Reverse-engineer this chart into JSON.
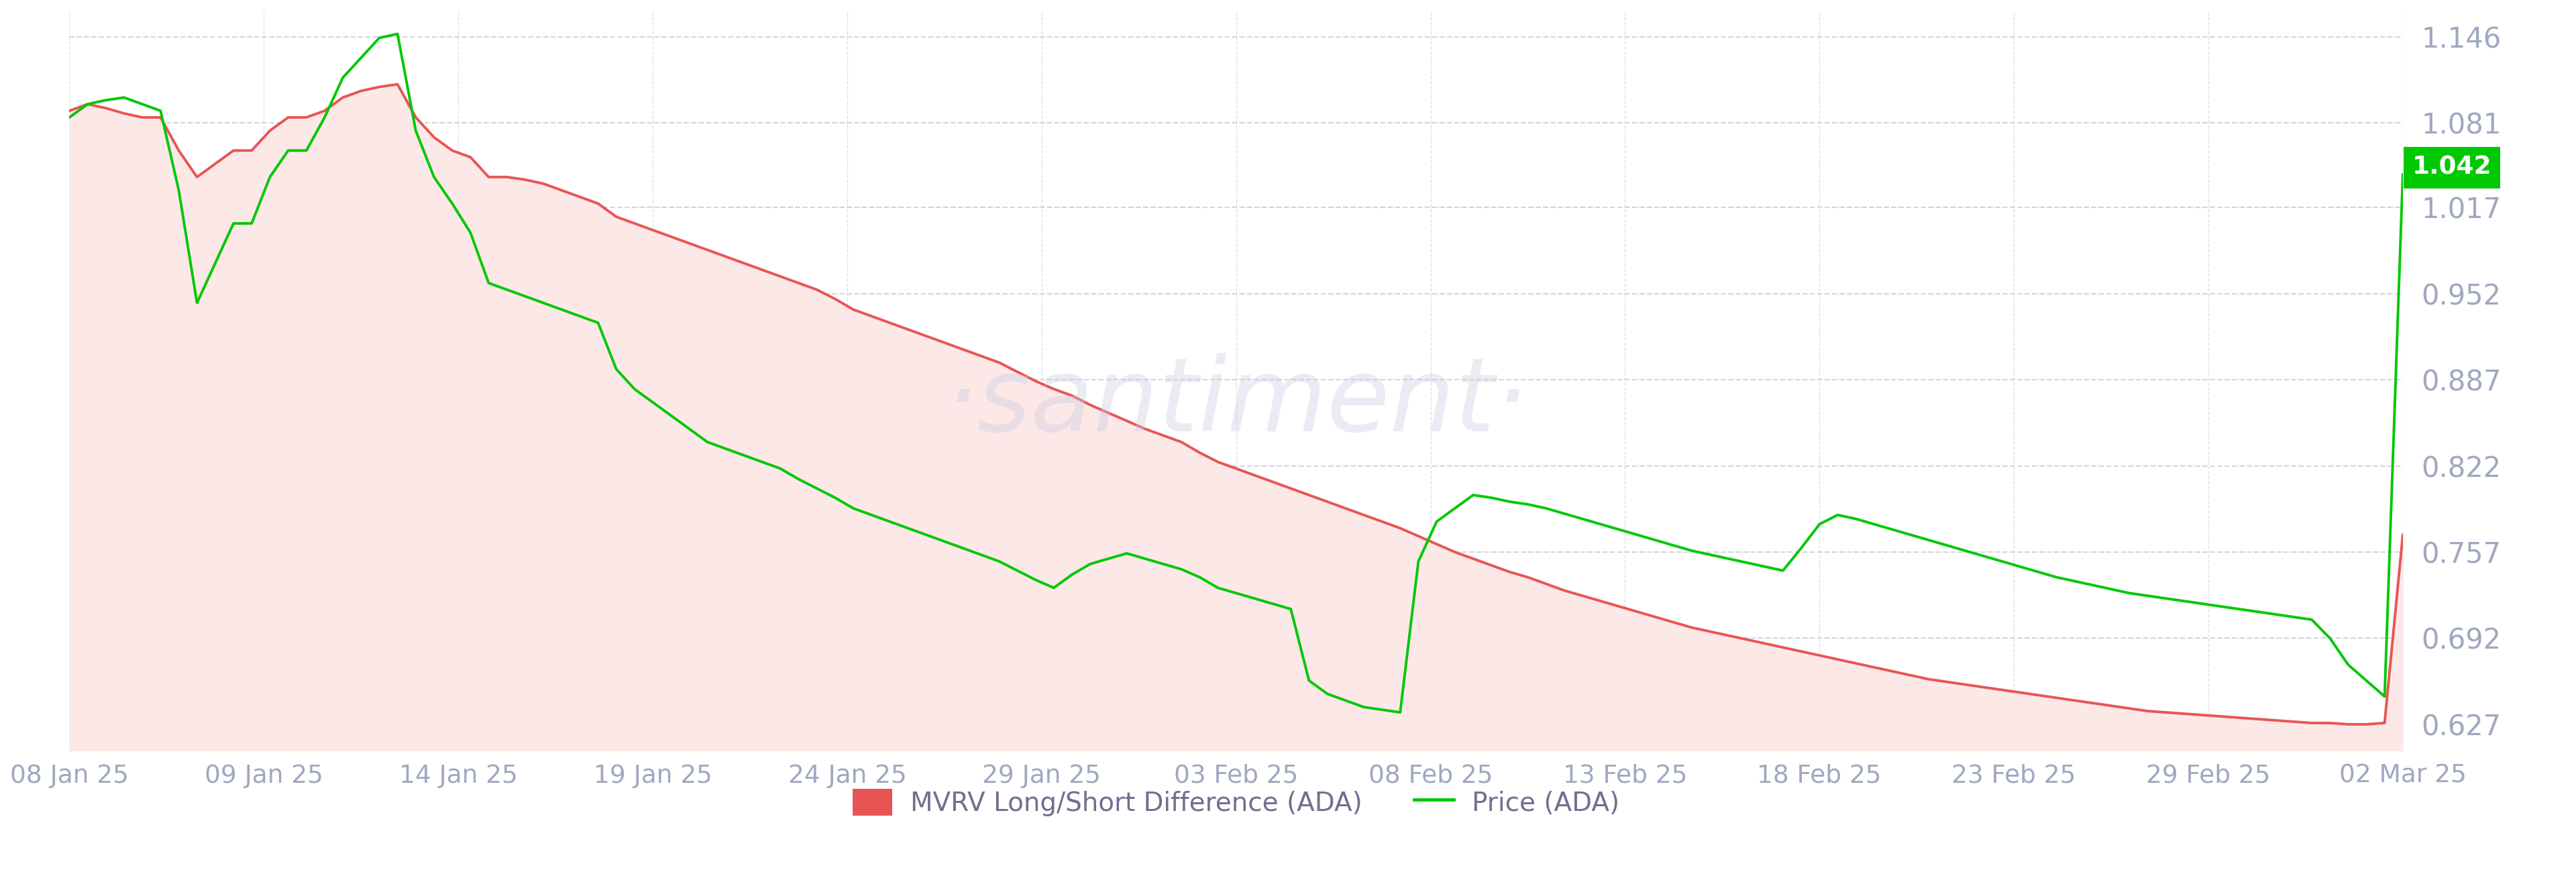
{
  "background_color": "#ffffff",
  "watermark": "·santiment·",
  "x_labels": [
    "08 Jan 25",
    "09 Jan 25",
    "14 Jan 25",
    "19 Jan 25",
    "24 Jan 25",
    "29 Jan 25",
    "03 Feb 25",
    "08 Feb 25",
    "13 Feb 25",
    "18 Feb 25",
    "23 Feb 25",
    "29 Feb 25",
    "02 Mar 25"
  ],
  "y_ticks": [
    0.627,
    0.692,
    0.757,
    0.822,
    0.887,
    0.952,
    1.017,
    1.081,
    1.146
  ],
  "y_min": 0.607,
  "y_max": 1.166,
  "last_price_label": "1.042",
  "last_price_color": "#00c805",
  "legend_mvrv_color": "#e85555",
  "legend_price_color": "#00c805",
  "mvrv_line_color": "#e85555",
  "mvrv_fill_color": "#fde8e8",
  "price_line_color": "#00c805",
  "grid_color": "#c8ccd8",
  "tick_color": "#a0a8c0",
  "mvrv_data": [
    1.09,
    1.095,
    1.092,
    1.088,
    1.085,
    1.085,
    1.06,
    1.04,
    1.05,
    1.06,
    1.06,
    1.075,
    1.085,
    1.085,
    1.09,
    1.1,
    1.105,
    1.108,
    1.11,
    1.085,
    1.07,
    1.06,
    1.055,
    1.04,
    1.04,
    1.038,
    1.035,
    1.03,
    1.025,
    1.02,
    1.01,
    1.005,
    1.0,
    0.995,
    0.99,
    0.985,
    0.98,
    0.975,
    0.97,
    0.965,
    0.96,
    0.955,
    0.948,
    0.94,
    0.935,
    0.93,
    0.925,
    0.92,
    0.915,
    0.91,
    0.905,
    0.9,
    0.893,
    0.886,
    0.88,
    0.875,
    0.868,
    0.862,
    0.856,
    0.85,
    0.845,
    0.84,
    0.832,
    0.825,
    0.82,
    0.815,
    0.81,
    0.805,
    0.8,
    0.795,
    0.79,
    0.785,
    0.78,
    0.775,
    0.769,
    0.763,
    0.757,
    0.752,
    0.747,
    0.742,
    0.738,
    0.733,
    0.728,
    0.724,
    0.72,
    0.716,
    0.712,
    0.708,
    0.704,
    0.7,
    0.697,
    0.694,
    0.691,
    0.688,
    0.685,
    0.682,
    0.679,
    0.676,
    0.673,
    0.67,
    0.667,
    0.664,
    0.661,
    0.659,
    0.657,
    0.655,
    0.653,
    0.651,
    0.649,
    0.647,
    0.645,
    0.643,
    0.641,
    0.639,
    0.637,
    0.636,
    0.635,
    0.634,
    0.633,
    0.632,
    0.631,
    0.63,
    0.629,
    0.628,
    0.628,
    0.627,
    0.627,
    0.628,
    0.77
  ],
  "price_data": [
    1.085,
    1.095,
    1.098,
    1.1,
    1.095,
    1.09,
    1.03,
    0.945,
    0.975,
    1.005,
    1.005,
    1.04,
    1.06,
    1.06,
    1.085,
    1.115,
    1.13,
    1.145,
    1.148,
    1.075,
    1.04,
    1.02,
    0.998,
    0.96,
    0.955,
    0.95,
    0.945,
    0.94,
    0.935,
    0.93,
    0.895,
    0.88,
    0.87,
    0.86,
    0.85,
    0.84,
    0.835,
    0.83,
    0.825,
    0.82,
    0.812,
    0.805,
    0.798,
    0.79,
    0.785,
    0.78,
    0.775,
    0.77,
    0.765,
    0.76,
    0.755,
    0.75,
    0.743,
    0.736,
    0.73,
    0.74,
    0.748,
    0.752,
    0.756,
    0.752,
    0.748,
    0.744,
    0.738,
    0.73,
    0.726,
    0.722,
    0.718,
    0.714,
    0.66,
    0.65,
    0.645,
    0.64,
    0.638,
    0.636,
    0.75,
    0.78,
    0.79,
    0.8,
    0.798,
    0.795,
    0.793,
    0.79,
    0.786,
    0.782,
    0.778,
    0.774,
    0.77,
    0.766,
    0.762,
    0.758,
    0.755,
    0.752,
    0.749,
    0.746,
    0.743,
    0.76,
    0.778,
    0.785,
    0.782,
    0.778,
    0.774,
    0.77,
    0.766,
    0.762,
    0.758,
    0.754,
    0.75,
    0.746,
    0.742,
    0.738,
    0.735,
    0.732,
    0.729,
    0.726,
    0.724,
    0.722,
    0.72,
    0.718,
    0.716,
    0.714,
    0.712,
    0.71,
    0.708,
    0.706,
    0.692,
    0.672,
    0.66,
    0.648,
    1.042
  ]
}
